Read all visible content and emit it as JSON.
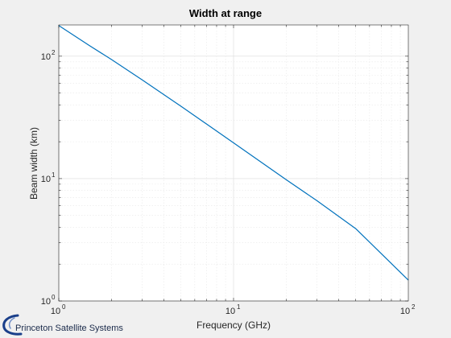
{
  "chart_data": {
    "type": "line",
    "title": "Width at range",
    "xlabel": "Frequency (GHz)",
    "ylabel": "Beam width (km)",
    "x_scale": "log",
    "y_scale": "log",
    "xlim": [
      1,
      100
    ],
    "ylim": [
      1,
      180
    ],
    "grid": true,
    "x_ticks": [
      {
        "value": 1,
        "base": "10",
        "exp": "0"
      },
      {
        "value": 10,
        "base": "10",
        "exp": "1"
      },
      {
        "value": 100,
        "base": "10",
        "exp": "2"
      }
    ],
    "y_ticks": [
      {
        "value": 1,
        "base": "10",
        "exp": "0"
      },
      {
        "value": 10,
        "base": "10",
        "exp": "1"
      },
      {
        "value": 100,
        "base": "10",
        "exp": "2"
      }
    ],
    "series": [
      {
        "color": "#0072bd",
        "x": [
          1,
          1.5,
          2,
          3,
          5,
          10,
          20,
          30,
          50,
          100
        ],
        "y": [
          178,
          122,
          94,
          64,
          39,
          19.6,
          9.8,
          6.6,
          3.9,
          1.48
        ]
      }
    ]
  },
  "logo": {
    "text": "Princeton Satellite Systems",
    "color": "#1a3f8a"
  }
}
